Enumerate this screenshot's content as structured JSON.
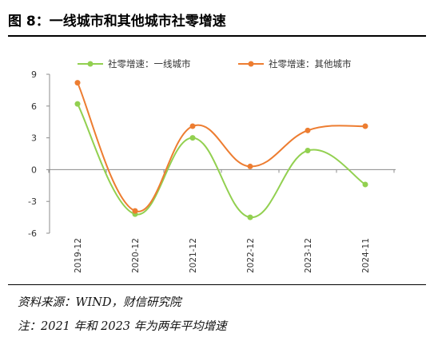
{
  "figure": {
    "title": "图 8：一线城市和其他城市社零增速",
    "source": "资料来源：WIND，财信研究院",
    "footnote": "注：2021 年和 2023 年为两年平均增速"
  },
  "chart_data": {
    "type": "line",
    "title": "",
    "xlabel": "",
    "ylabel": "",
    "categories": [
      "2019-12",
      "2020-12",
      "2021-12",
      "2022-12",
      "2023-12",
      "2024-11"
    ],
    "ylim": [
      -6,
      9
    ],
    "yticks": [
      -6,
      -3,
      0,
      3,
      6,
      9
    ],
    "grid": false,
    "legend": "top",
    "smooth": true,
    "series": [
      {
        "name": "社零增速：一线城市",
        "color": "#92d050",
        "values": [
          6.2,
          -4.2,
          3.0,
          -4.5,
          1.8,
          -1.4
        ]
      },
      {
        "name": "社零增速：其他城市",
        "color": "#ed7d31",
        "values": [
          8.2,
          -3.9,
          4.1,
          0.3,
          3.7,
          4.1
        ]
      }
    ]
  }
}
